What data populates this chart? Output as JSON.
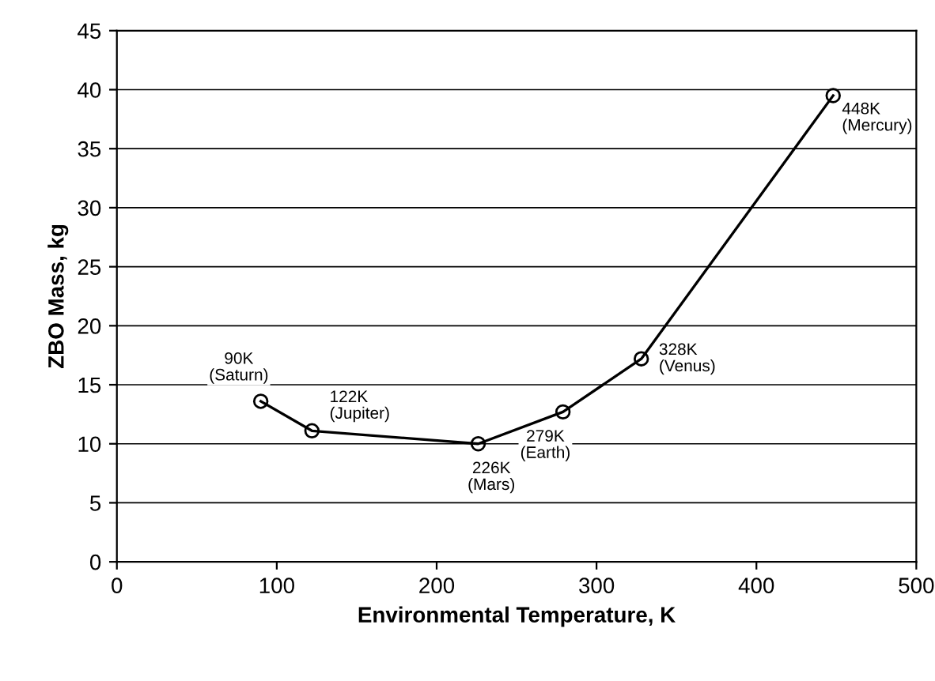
{
  "chart_data": {
    "type": "line",
    "xlabel": "Environmental Temperature, K",
    "ylabel": "ZBO Mass, kg",
    "x": [
      90,
      122,
      226,
      279,
      328,
      448
    ],
    "series": [
      {
        "color": "#000000",
        "values": [
          13.6,
          11.1,
          10.0,
          12.7,
          17.2,
          39.5
        ]
      }
    ],
    "xlim": [
      0,
      500
    ],
    "xticks": [
      0,
      100,
      200,
      300,
      400,
      500
    ],
    "ylim": [
      0,
      45
    ],
    "yticks": [
      0,
      5,
      10,
      15,
      20,
      25,
      30,
      35,
      40,
      45
    ],
    "grid": "y",
    "marker": "circle",
    "line_style": "solid",
    "annotations": [
      {
        "text": "90K\n(Saturn)",
        "x": 90,
        "y": 13.6
      },
      {
        "text": "122K\n(Jupiter)",
        "x": 122,
        "y": 11.1
      },
      {
        "text": "226K\n(Mars)",
        "x": 226,
        "y": 10.0
      },
      {
        "text": "279K\n(Earth)",
        "x": 279,
        "y": 12.7
      },
      {
        "text": "328K\n(Venus)",
        "x": 328,
        "y": 17.2
      },
      {
        "text": "448K\n(Mercury)",
        "x": 448,
        "y": 39.5
      }
    ]
  }
}
